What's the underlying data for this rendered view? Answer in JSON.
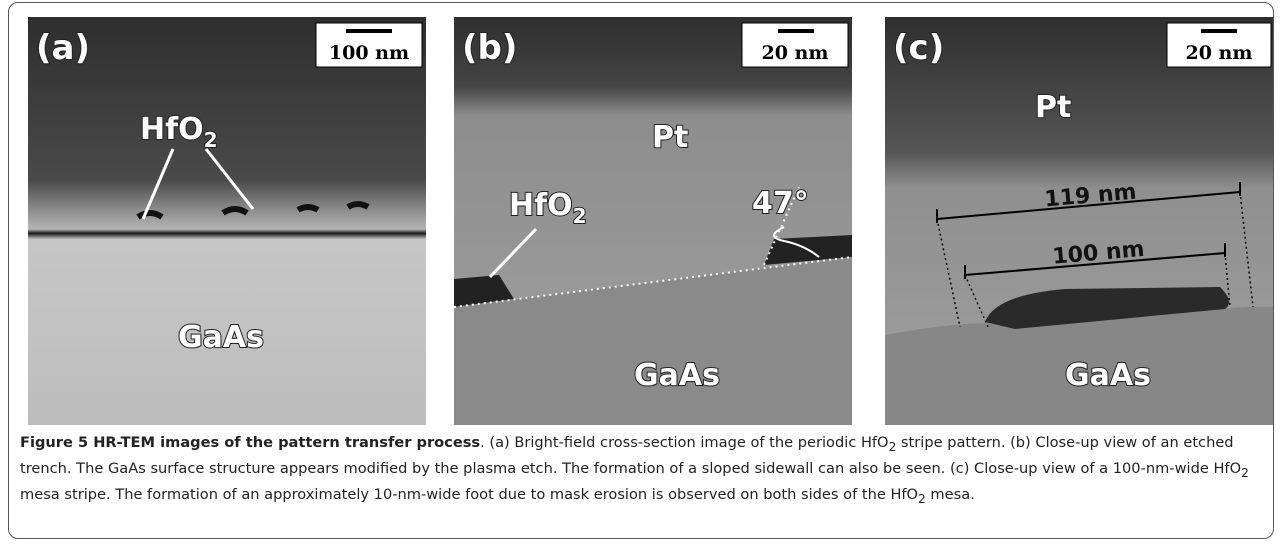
{
  "panels": [
    {
      "label": "(a)",
      "scale_bar": "100 nm",
      "annotations": {
        "oxide": "HfO",
        "oxide_sub": "2",
        "substrate": "GaAs"
      }
    },
    {
      "label": "(b)",
      "scale_bar": "20 nm",
      "annotations": {
        "metal": "Pt",
        "oxide": "HfO",
        "oxide_sub": "2",
        "angle": "47°",
        "substrate": "GaAs"
      }
    },
    {
      "label": "(c)",
      "scale_bar": "20 nm",
      "annotations": {
        "metal": "Pt",
        "outer_width": "119 nm",
        "inner_width": "100 nm",
        "substrate": "GaAs"
      }
    }
  ],
  "caption": {
    "title": "Figure 5 HR-TEM images of the pattern transfer process",
    "parts": [
      ". (a) Bright-field cross-section image of the periodic HfO",
      "2",
      " stripe pattern. (b) Close-up view of an etched trench. The GaAs surface structure appears modified by the plasma etch. The formation of a sloped sidewall can also be seen. (c) Close-up view of a 100-nm-wide HfO",
      "2",
      " mesa stripe. The formation of an approximately 10-nm-wide foot due to mask erosion is observed on both sides of the HfO",
      "2",
      " mesa."
    ]
  }
}
